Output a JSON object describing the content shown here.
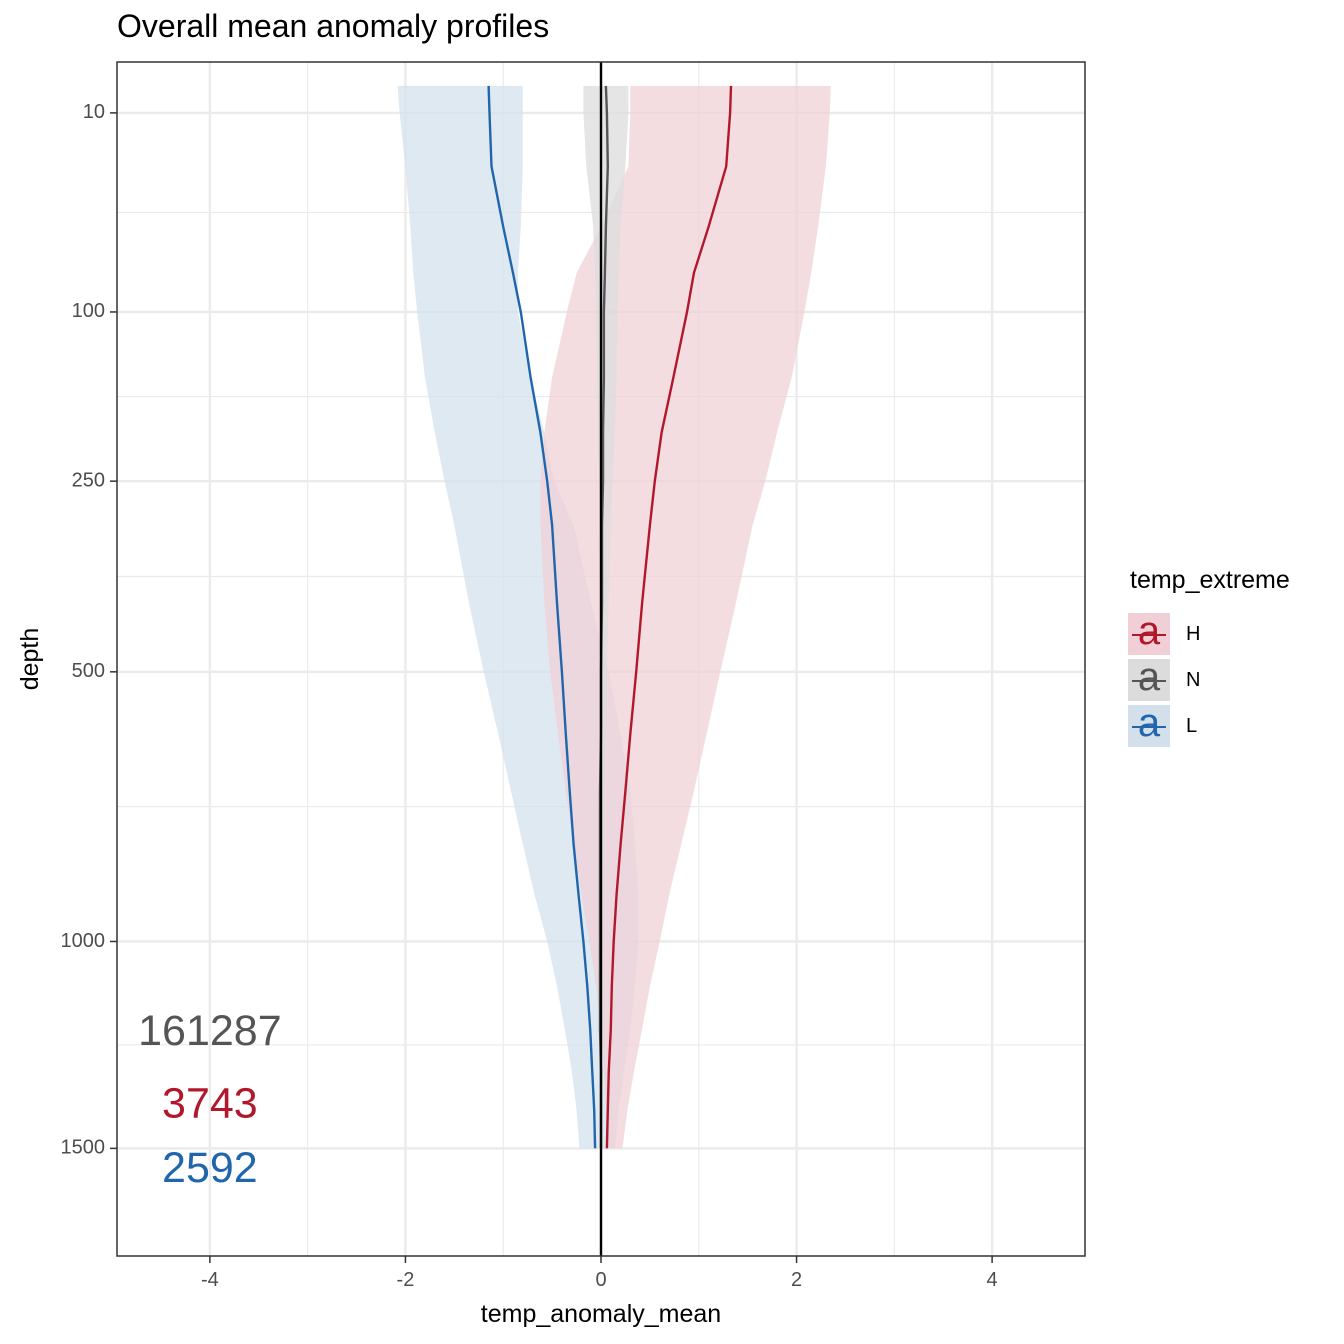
{
  "title": "Overall mean anomaly profiles",
  "legend": {
    "title": "temp_extreme",
    "items": [
      {
        "label": "H",
        "glyph": "a",
        "line_color": "#B2182B",
        "fill_color": "#F0D0D6"
      },
      {
        "label": "N",
        "glyph": "a",
        "line_color": "#555555",
        "fill_color": "#DCDCDC"
      },
      {
        "label": "L",
        "glyph": "a",
        "line_color": "#2166AC",
        "fill_color": "#D3E0EC"
      }
    ]
  },
  "chart_data": {
    "type": "area",
    "title": "Overall mean anomaly profiles",
    "xlabel": "temp_anomaly_mean",
    "ylabel": "depth",
    "xlim": [
      -4.95,
      4.95
    ],
    "ylim": [
      1800,
      2
    ],
    "y_scale": "reversed square root",
    "x_ticks": [
      "-4",
      "-2",
      "0",
      "2",
      "4"
    ],
    "x_tick_values": [
      -4,
      -2,
      0,
      2,
      4
    ],
    "y_ticks": [
      "10",
      "100",
      "250",
      "500",
      "1000",
      "1500"
    ],
    "y_tick_values": [
      10,
      100,
      250,
      500,
      1000,
      1500
    ],
    "grid": true,
    "legend_position": "right",
    "reference_line_x": 0,
    "depth": [
      5,
      10,
      25,
      50,
      75,
      100,
      150,
      200,
      250,
      300,
      400,
      500,
      600,
      700,
      800,
      900,
      1000,
      1100,
      1200,
      1300,
      1400,
      1500
    ],
    "series": [
      {
        "name": "H",
        "color": "#B2182B",
        "fill": "#F0D0D6",
        "mean": [
          1.33,
          1.32,
          1.28,
          1.1,
          0.95,
          0.88,
          0.74,
          0.62,
          0.55,
          0.5,
          0.42,
          0.36,
          0.3,
          0.25,
          0.2,
          0.16,
          0.13,
          0.11,
          0.1,
          0.08,
          0.07,
          0.06
        ],
        "upper": [
          2.35,
          2.34,
          2.3,
          2.22,
          2.15,
          2.08,
          1.95,
          1.8,
          1.68,
          1.55,
          1.38,
          1.22,
          1.08,
          0.95,
          0.82,
          0.7,
          0.6,
          0.5,
          0.42,
          0.34,
          0.27,
          0.22
        ],
        "lower": [
          0.3,
          0.3,
          0.28,
          0.0,
          -0.25,
          -0.35,
          -0.5,
          -0.58,
          -0.62,
          -0.62,
          -0.58,
          -0.52,
          -0.44,
          -0.36,
          -0.28,
          -0.2,
          -0.12,
          -0.05,
          0.0,
          0.03,
          0.05,
          0.06
        ]
      },
      {
        "name": "N",
        "color": "#555555",
        "fill": "#DCDCDC",
        "mean": [
          0.05,
          0.06,
          0.07,
          0.05,
          0.04,
          0.03,
          0.03,
          0.02,
          0.02,
          0.01,
          0.01,
          0.0,
          0.0,
          -0.01,
          -0.01,
          -0.01,
          -0.01,
          -0.01,
          -0.01,
          0.0,
          0.0,
          0.0
        ],
        "upper": [
          0.28,
          0.28,
          0.25,
          0.2,
          0.18,
          0.17,
          0.16,
          0.14,
          0.12,
          0.1,
          0.08,
          0.06,
          0.05,
          0.04,
          0.03,
          0.02,
          0.02,
          0.01,
          0.01,
          0.01,
          0.0,
          0.0
        ],
        "lower": [
          -0.18,
          -0.18,
          -0.15,
          -0.08,
          -0.06,
          -0.05,
          -0.04,
          -0.03,
          -0.02,
          -0.02,
          -0.01,
          -0.01,
          -0.01,
          -0.01,
          -0.01,
          -0.01,
          -0.01,
          -0.01,
          -0.01,
          -0.01,
          0.0,
          0.0
        ]
      },
      {
        "name": "L",
        "color": "#2166AC",
        "fill": "#D3E0EC",
        "mean": [
          -1.15,
          -1.14,
          -1.12,
          -1.0,
          -0.9,
          -0.82,
          -0.72,
          -0.62,
          -0.55,
          -0.5,
          -0.45,
          -0.4,
          -0.36,
          -0.32,
          -0.28,
          -0.23,
          -0.18,
          -0.14,
          -0.11,
          -0.09,
          -0.07,
          -0.06
        ],
        "upper": [
          -0.8,
          -0.8,
          -0.8,
          -0.82,
          -0.85,
          -0.85,
          -0.72,
          -0.58,
          -0.48,
          -0.28,
          -0.1,
          0.08,
          0.2,
          0.3,
          0.35,
          0.38,
          0.38,
          0.35,
          0.3,
          0.24,
          0.18,
          0.14
        ],
        "lower": [
          -2.08,
          -2.06,
          -2.0,
          -1.95,
          -1.92,
          -1.88,
          -1.8,
          -1.7,
          -1.6,
          -1.5,
          -1.35,
          -1.2,
          -1.05,
          -0.92,
          -0.8,
          -0.68,
          -0.55,
          -0.45,
          -0.37,
          -0.3,
          -0.25,
          -0.22
        ]
      }
    ],
    "annotations": [
      {
        "text": "161287",
        "x": -4,
        "y": 1210,
        "color": "#555555"
      },
      {
        "text": "3743",
        "x": -4,
        "y": 1390,
        "color": "#B2182B"
      },
      {
        "text": "2592",
        "x": -4,
        "y": 1560,
        "color": "#2166AC"
      }
    ]
  }
}
